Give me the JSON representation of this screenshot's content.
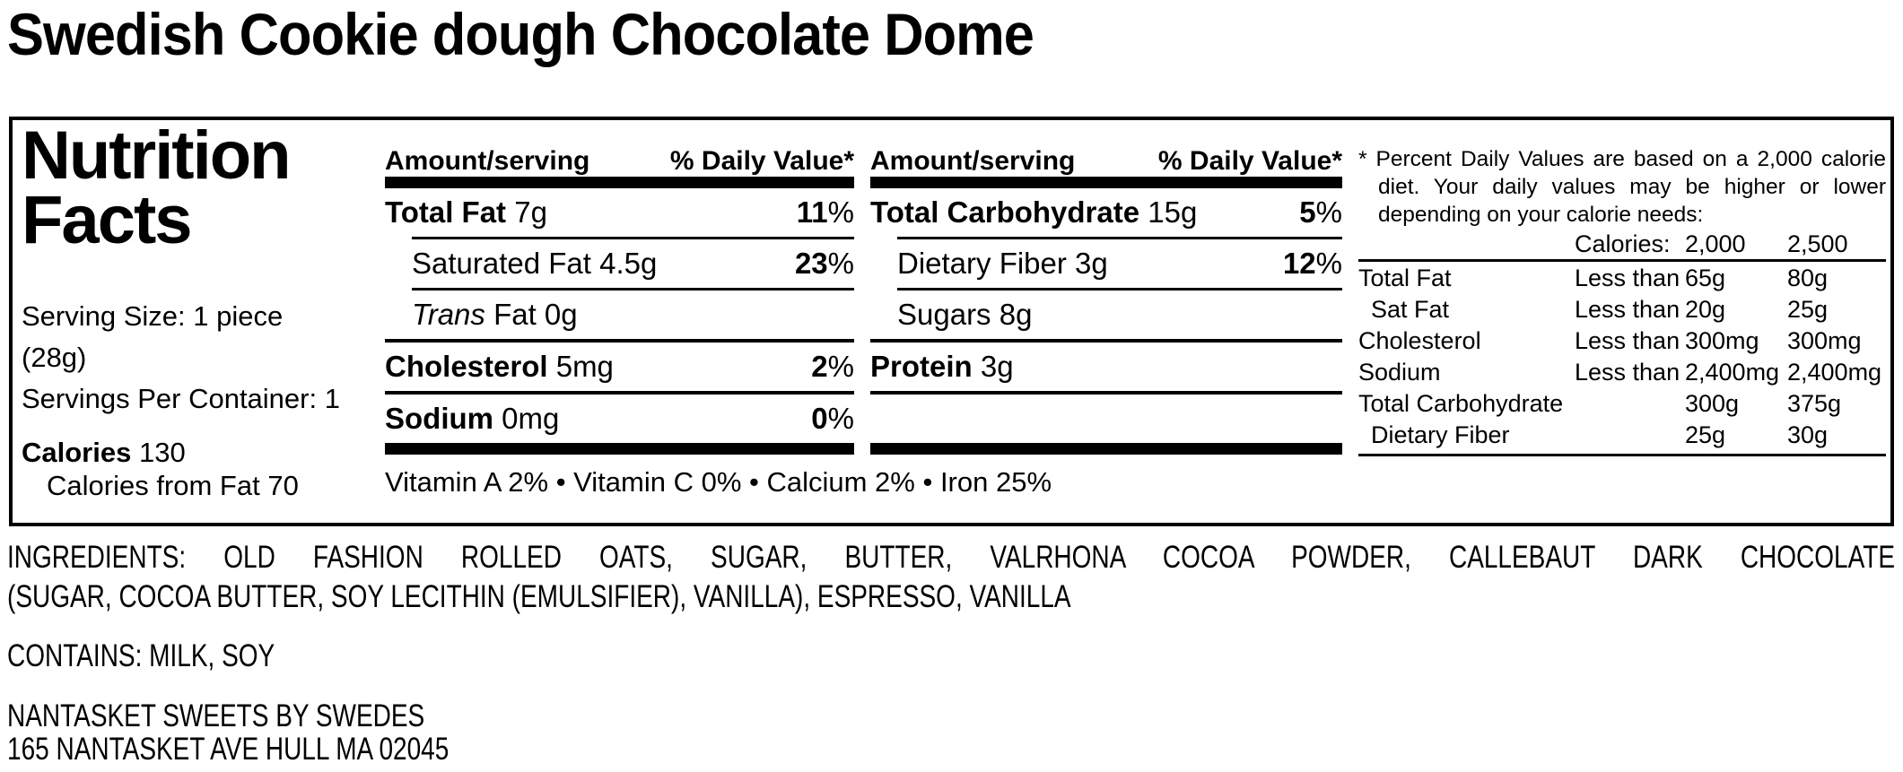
{
  "product_title": "Swedish Cookie dough Chocolate Dome",
  "panel": {
    "heading_line1": "Nutrition",
    "heading_line2": "Facts",
    "serving_size_line1": "Serving Size: 1 piece",
    "serving_size_line2": "(28g)",
    "servings_per_container": "Servings Per Container: 1",
    "calories_label": "Calories",
    "calories_value": "130",
    "calories_from_fat": "Calories from Fat 70",
    "col_header_amount": "Amount/serving",
    "col_header_dv": "% Daily Value*",
    "pct": "%",
    "col1": {
      "rows": [
        {
          "name": "Total Fat",
          "amount": "7g",
          "dv": "11"
        },
        {
          "name": "Saturated Fat 4.5g",
          "dv": "23"
        },
        {
          "name_italic": "Trans",
          "name_rest": " Fat 0g"
        },
        {
          "name": "Cholesterol",
          "amount": "5mg",
          "dv": "2"
        },
        {
          "name": "Sodium",
          "amount": "0mg",
          "dv": "0"
        }
      ]
    },
    "col2": {
      "rows": [
        {
          "name": "Total Carbohydrate",
          "amount": "15g",
          "dv": "5"
        },
        {
          "name": "Dietary Fiber 3g",
          "dv": "12"
        },
        {
          "name": "Sugars 8g"
        },
        {
          "name": "Protein",
          "amount": "3g"
        }
      ]
    },
    "vitamins": "Vitamin A 2% • Vitamin C 0% • Calcium 2% • Iron 25%",
    "footnote": {
      "line1": "* Percent Daily Values are based on a 2,000 calorie",
      "line2": "diet. Your daily values may be higher or lower",
      "line3": "depending on your calorie needs:"
    },
    "reference_table": {
      "calories_label": "Calories:",
      "calories_2000": "2,000",
      "calories_2500": "2,500",
      "rows": [
        {
          "name": "Total Fat",
          "qualifier": "Less than",
          "v2000": "65g",
          "v2500": "80g"
        },
        {
          "name": "Sat Fat",
          "qualifier": "Less than",
          "v2000": "20g",
          "v2500": "25g"
        },
        {
          "name": "Cholesterol",
          "qualifier": "Less than",
          "v2000": "300mg",
          "v2500": "300mg"
        },
        {
          "name": "Sodium",
          "qualifier": "Less than",
          "v2000": "2,400mg",
          "v2500": "2,400mg"
        },
        {
          "name": "Total Carbohydrate",
          "qualifier": "",
          "v2000": "300g",
          "v2500": "375g"
        },
        {
          "name": "Dietary Fiber",
          "qualifier": "",
          "v2000": "25g",
          "v2500": "30g"
        }
      ]
    }
  },
  "ingredients_line1": "INGREDIENTS: OLD FASHION ROLLED OATS, SUGAR, BUTTER, VALRHONA COCOA POWDER, CALLEBAUT DARK CHOCOLATE",
  "ingredients_line2": "(SUGAR, COCOA BUTTER, SOY LECITHIN (EMULSIFIER), VANILLA), ESPRESSO, VANILLA",
  "contains": "CONTAINS: MILK, SOY",
  "company_name": "NANTASKET SWEETS BY SWEDES",
  "company_address": "165 NANTASKET AVE HULL MA 02045"
}
